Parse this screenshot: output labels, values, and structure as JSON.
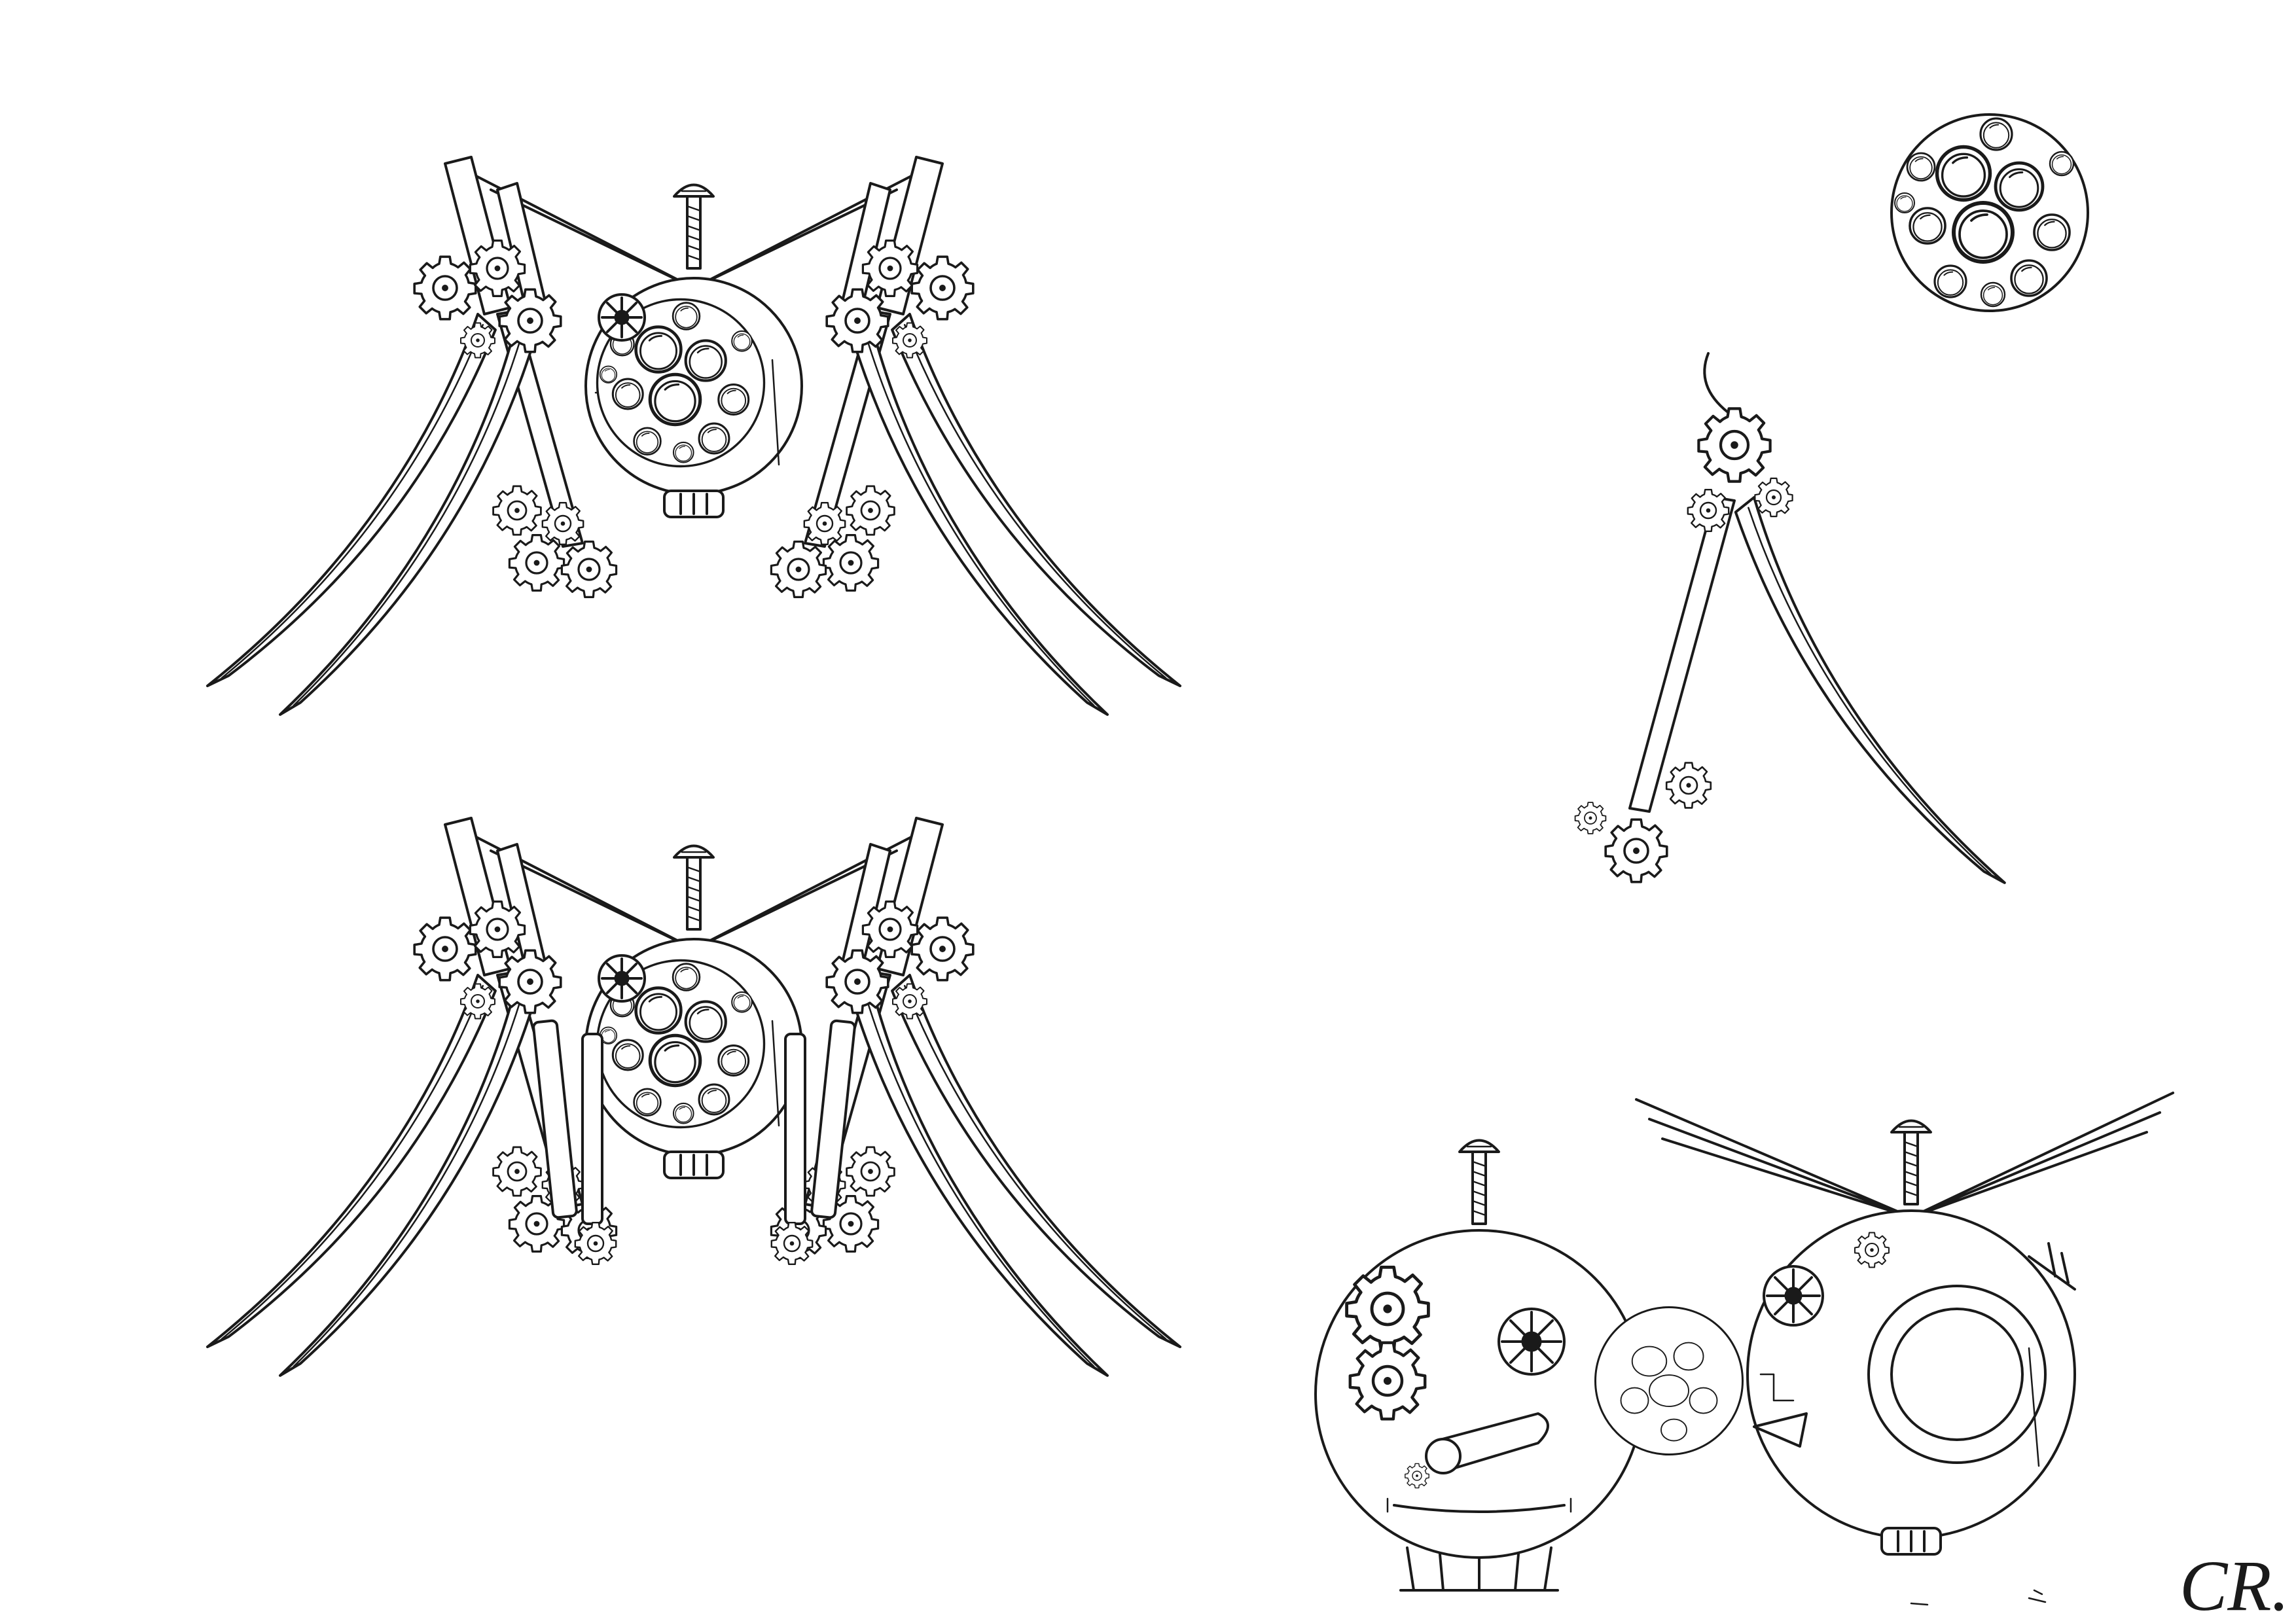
{
  "artwork": {
    "kind": "pen-and-ink concept sheet",
    "background": "#ffffff",
    "ink_color": "#1a1a1a",
    "signature_text": "CR."
  },
  "figures": [
    {
      "id": "spider-top",
      "icon": "clockwork-spider-icon"
    },
    {
      "id": "spider-bottom",
      "icon": "clockwork-spider-icon"
    },
    {
      "id": "sphere",
      "icon": "bubble-sphere-icon"
    },
    {
      "id": "single-leg",
      "icon": "mechanical-leg-icon"
    },
    {
      "id": "head-front",
      "icon": "mechanical-head-icon"
    },
    {
      "id": "head-side",
      "icon": "mechanical-head-icon"
    }
  ]
}
